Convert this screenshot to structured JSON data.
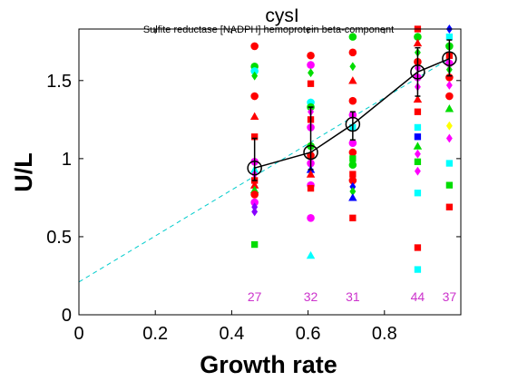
{
  "chart_data": {
    "type": "scatter",
    "title": "cysI",
    "subtitle": "Sulfite reductase [NADPH] hemoprotein beta-component",
    "xlabel": "Growth rate",
    "ylabel": "U/L",
    "xlim": [
      0,
      1
    ],
    "ylim": [
      0,
      1.83
    ],
    "xticks": [
      "0",
      "0.2",
      "0.4",
      "0.6",
      "0.8"
    ],
    "xtick_values": [
      0,
      0.2,
      0.4,
      0.6,
      0.8
    ],
    "yticks": [
      "0",
      "0.5",
      "1",
      "1.5"
    ],
    "ytick_values": [
      0,
      0.5,
      1,
      1.5
    ],
    "grid": false,
    "fit_line": {
      "color": "#00cccc",
      "style": "dashed",
      "x": [
        0,
        0.97
      ],
      "y": [
        0.21,
        1.64
      ]
    },
    "mean_series": {
      "color": "#000000",
      "x": [
        0.46,
        0.607,
        0.717,
        0.887,
        0.97
      ],
      "y": [
        0.94,
        1.04,
        1.22,
        1.555,
        1.64
      ],
      "error": [
        [
          0.86,
          1.13
        ],
        [
          0.93,
          1.33
        ],
        [
          1.12,
          1.3
        ],
        [
          1.4,
          1.71
        ],
        [
          1.53,
          1.76
        ]
      ]
    },
    "counts": [
      {
        "x": 0.46,
        "label": "27"
      },
      {
        "x": 0.607,
        "label": "32"
      },
      {
        "x": 0.717,
        "label": "31"
      },
      {
        "x": 0.887,
        "label": "44"
      },
      {
        "x": 0.97,
        "label": "37"
      }
    ],
    "points": [
      {
        "x": 0.46,
        "y": 1.72,
        "c": "#ff0000",
        "m": "circle"
      },
      {
        "x": 0.46,
        "y": 1.59,
        "c": "#00dd00",
        "m": "circle"
      },
      {
        "x": 0.46,
        "y": 1.56,
        "c": "#00ffff",
        "m": "circle"
      },
      {
        "x": 0.46,
        "y": 1.53,
        "c": "#00dd00",
        "m": "diamond"
      },
      {
        "x": 0.46,
        "y": 1.4,
        "c": "#ff0000",
        "m": "circle"
      },
      {
        "x": 0.46,
        "y": 1.27,
        "c": "#ff0000",
        "m": "triangle"
      },
      {
        "x": 0.46,
        "y": 1.14,
        "c": "#ff0000",
        "m": "square"
      },
      {
        "x": 0.46,
        "y": 0.98,
        "c": "#ff00ff",
        "m": "circle"
      },
      {
        "x": 0.46,
        "y": 0.93,
        "c": "#00ffff",
        "m": "triangle"
      },
      {
        "x": 0.46,
        "y": 0.9,
        "c": "#ff00ff",
        "m": "diamond"
      },
      {
        "x": 0.46,
        "y": 0.86,
        "c": "#ff0000",
        "m": "square"
      },
      {
        "x": 0.46,
        "y": 0.83,
        "c": "#ff0000",
        "m": "triangle"
      },
      {
        "x": 0.46,
        "y": 0.8,
        "c": "#00dd00",
        "m": "triangle"
      },
      {
        "x": 0.46,
        "y": 0.77,
        "c": "#ff0000",
        "m": "circle"
      },
      {
        "x": 0.46,
        "y": 0.72,
        "c": "#ff00ff",
        "m": "circle"
      },
      {
        "x": 0.46,
        "y": 0.69,
        "c": "#8800ff",
        "m": "diamond"
      },
      {
        "x": 0.46,
        "y": 0.66,
        "c": "#8800ff",
        "m": "diamond"
      },
      {
        "x": 0.46,
        "y": 0.45,
        "c": "#00dd00",
        "m": "square"
      },
      {
        "x": 0.607,
        "y": 1.66,
        "c": "#ff0000",
        "m": "circle"
      },
      {
        "x": 0.607,
        "y": 1.6,
        "c": "#ff00ff",
        "m": "circle"
      },
      {
        "x": 0.607,
        "y": 1.55,
        "c": "#00dd00",
        "m": "diamond"
      },
      {
        "x": 0.607,
        "y": 1.48,
        "c": "#ff0000",
        "m": "square"
      },
      {
        "x": 0.607,
        "y": 1.36,
        "c": "#00ffff",
        "m": "circle"
      },
      {
        "x": 0.607,
        "y": 1.33,
        "c": "#00dd00",
        "m": "circle"
      },
      {
        "x": 0.607,
        "y": 1.3,
        "c": "#ff00ff",
        "m": "diamond"
      },
      {
        "x": 0.607,
        "y": 1.25,
        "c": "#ff0000",
        "m": "square"
      },
      {
        "x": 0.607,
        "y": 1.2,
        "c": "#ff00ff",
        "m": "circle"
      },
      {
        "x": 0.607,
        "y": 1.08,
        "c": "#00dd00",
        "m": "circle"
      },
      {
        "x": 0.607,
        "y": 1.02,
        "c": "#ff0000",
        "m": "circle"
      },
      {
        "x": 0.607,
        "y": 0.97,
        "c": "#ff00ff",
        "m": "circle"
      },
      {
        "x": 0.607,
        "y": 0.93,
        "c": "#0000ff",
        "m": "triangle"
      },
      {
        "x": 0.607,
        "y": 0.9,
        "c": "#ff0000",
        "m": "triangle"
      },
      {
        "x": 0.607,
        "y": 0.83,
        "c": "#ff00ff",
        "m": "circle"
      },
      {
        "x": 0.607,
        "y": 0.81,
        "c": "#ff0000",
        "m": "square"
      },
      {
        "x": 0.607,
        "y": 0.62,
        "c": "#ff00ff",
        "m": "circle"
      },
      {
        "x": 0.607,
        "y": 0.38,
        "c": "#00ffff",
        "m": "triangle"
      },
      {
        "x": 0.717,
        "y": 1.78,
        "c": "#00dd00",
        "m": "circle"
      },
      {
        "x": 0.717,
        "y": 1.68,
        "c": "#ff0000",
        "m": "circle"
      },
      {
        "x": 0.717,
        "y": 1.59,
        "c": "#00dd00",
        "m": "diamond"
      },
      {
        "x": 0.717,
        "y": 1.5,
        "c": "#ff0000",
        "m": "triangle"
      },
      {
        "x": 0.717,
        "y": 1.37,
        "c": "#ff0000",
        "m": "circle"
      },
      {
        "x": 0.717,
        "y": 1.28,
        "c": "#ff00ff",
        "m": "circle"
      },
      {
        "x": 0.717,
        "y": 1.2,
        "c": "#00ffff",
        "m": "square"
      },
      {
        "x": 0.717,
        "y": 1.1,
        "c": "#ff00ff",
        "m": "circle"
      },
      {
        "x": 0.717,
        "y": 1.04,
        "c": "#ff0000",
        "m": "circle"
      },
      {
        "x": 0.717,
        "y": 1.0,
        "c": "#00dd00",
        "m": "square"
      },
      {
        "x": 0.717,
        "y": 0.96,
        "c": "#00dd00",
        "m": "circle"
      },
      {
        "x": 0.717,
        "y": 0.9,
        "c": "#ff0000",
        "m": "square"
      },
      {
        "x": 0.717,
        "y": 0.86,
        "c": "#ff0000",
        "m": "circle"
      },
      {
        "x": 0.717,
        "y": 0.82,
        "c": "#0000ff",
        "m": "diamond"
      },
      {
        "x": 0.717,
        "y": 0.79,
        "c": "#00dd00",
        "m": "diamond"
      },
      {
        "x": 0.717,
        "y": 0.75,
        "c": "#0000ff",
        "m": "triangle"
      },
      {
        "x": 0.717,
        "y": 0.62,
        "c": "#ff0000",
        "m": "square"
      },
      {
        "x": 0.887,
        "y": 1.83,
        "c": "#ff0000",
        "m": "square"
      },
      {
        "x": 0.887,
        "y": 1.78,
        "c": "#00dd00",
        "m": "circle"
      },
      {
        "x": 0.887,
        "y": 1.74,
        "c": "#ff0000",
        "m": "triangle"
      },
      {
        "x": 0.887,
        "y": 1.68,
        "c": "#00dd00",
        "m": "diamond"
      },
      {
        "x": 0.887,
        "y": 1.62,
        "c": "#ff0000",
        "m": "circle"
      },
      {
        "x": 0.887,
        "y": 1.58,
        "c": "#ff00ff",
        "m": "diamond"
      },
      {
        "x": 0.887,
        "y": 1.52,
        "c": "#ff00ff",
        "m": "circle"
      },
      {
        "x": 0.887,
        "y": 1.46,
        "c": "#ff00ff",
        "m": "diamond"
      },
      {
        "x": 0.887,
        "y": 1.38,
        "c": "#ff0000",
        "m": "triangle"
      },
      {
        "x": 0.887,
        "y": 1.3,
        "c": "#ff0000",
        "m": "square"
      },
      {
        "x": 0.887,
        "y": 1.2,
        "c": "#00ffff",
        "m": "square"
      },
      {
        "x": 0.887,
        "y": 1.14,
        "c": "#0000ff",
        "m": "square"
      },
      {
        "x": 0.887,
        "y": 1.08,
        "c": "#00dd00",
        "m": "triangle"
      },
      {
        "x": 0.887,
        "y": 1.03,
        "c": "#ff00ff",
        "m": "diamond"
      },
      {
        "x": 0.887,
        "y": 0.98,
        "c": "#00dd00",
        "m": "square"
      },
      {
        "x": 0.887,
        "y": 0.92,
        "c": "#ff00ff",
        "m": "diamond"
      },
      {
        "x": 0.887,
        "y": 0.78,
        "c": "#00ffff",
        "m": "square"
      },
      {
        "x": 0.887,
        "y": 0.43,
        "c": "#ff0000",
        "m": "square"
      },
      {
        "x": 0.887,
        "y": 0.29,
        "c": "#00ffff",
        "m": "square"
      },
      {
        "x": 0.97,
        "y": 1.83,
        "c": "#0000ff",
        "m": "diamond"
      },
      {
        "x": 0.97,
        "y": 1.78,
        "c": "#00ffff",
        "m": "square"
      },
      {
        "x": 0.97,
        "y": 1.72,
        "c": "#00dd00",
        "m": "circle"
      },
      {
        "x": 0.97,
        "y": 1.66,
        "c": "#ff0000",
        "m": "square"
      },
      {
        "x": 0.97,
        "y": 1.61,
        "c": "#ff00ff",
        "m": "circle"
      },
      {
        "x": 0.97,
        "y": 1.57,
        "c": "#00dd00",
        "m": "diamond"
      },
      {
        "x": 0.97,
        "y": 1.52,
        "c": "#ff0000",
        "m": "circle"
      },
      {
        "x": 0.97,
        "y": 1.47,
        "c": "#ff00ff",
        "m": "diamond"
      },
      {
        "x": 0.97,
        "y": 1.4,
        "c": "#ff0000",
        "m": "circle"
      },
      {
        "x": 0.97,
        "y": 1.32,
        "c": "#00dd00",
        "m": "triangle"
      },
      {
        "x": 0.97,
        "y": 1.21,
        "c": "#ffff00",
        "m": "diamond"
      },
      {
        "x": 0.97,
        "y": 1.13,
        "c": "#ff00ff",
        "m": "diamond"
      },
      {
        "x": 0.97,
        "y": 0.97,
        "c": "#00ffff",
        "m": "square"
      },
      {
        "x": 0.97,
        "y": 0.83,
        "c": "#00dd00",
        "m": "square"
      },
      {
        "x": 0.97,
        "y": 0.69,
        "c": "#ff0000",
        "m": "square"
      }
    ]
  }
}
